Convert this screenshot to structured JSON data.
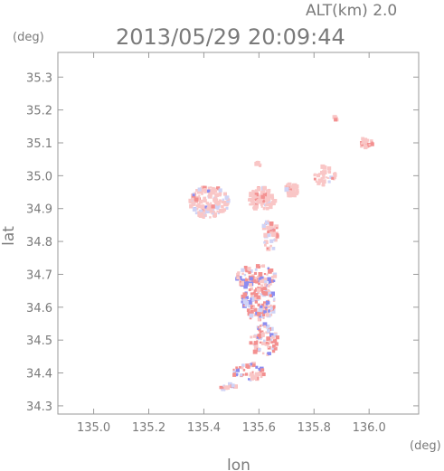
{
  "chart_data": {
    "type": "scatter",
    "title": "2013/05/29 20:09:44",
    "subtitle": "ALT(km) 2.0",
    "xlabel": "lon",
    "ylabel": "lat",
    "x_unit": "(deg)",
    "y_unit": "(deg)",
    "xlim": [
      134.87,
      136.18
    ],
    "ylim": [
      34.275,
      35.375
    ],
    "x_ticks": [
      "135.0",
      "135.2",
      "135.4",
      "135.6",
      "135.8",
      "136.0"
    ],
    "y_ticks": [
      "34.3",
      "34.4",
      "34.5",
      "34.6",
      "34.7",
      "34.8",
      "34.9",
      "35.0",
      "35.1",
      "35.2",
      "35.3"
    ],
    "grid": false,
    "colors": {
      "positive": "#f39090",
      "positive_light": "#f9c6c6",
      "negative": "#8c8cf0",
      "negative_light": "#cfd3f6"
    },
    "clusters": [
      {
        "name": "northwest-blob",
        "lon": 135.42,
        "lat": 34.92,
        "rx": 0.07,
        "ry": 0.05,
        "count": 160,
        "neg": 0.2,
        "light": 0.9
      },
      {
        "name": "central-north-blob",
        "lon": 135.61,
        "lat": 34.93,
        "rx": 0.05,
        "ry": 0.035,
        "count": 110,
        "neg": 0.03,
        "light": 0.85
      },
      {
        "name": "east-blob",
        "lon": 135.72,
        "lat": 34.955,
        "rx": 0.025,
        "ry": 0.02,
        "count": 45,
        "neg": 0.03,
        "light": 0.85
      },
      {
        "name": "northeast-blob",
        "lon": 135.84,
        "lat": 35.0,
        "rx": 0.04,
        "ry": 0.03,
        "count": 40,
        "neg": 0.03,
        "light": 0.9
      },
      {
        "name": "far-northeast-blob",
        "lon": 135.99,
        "lat": 35.1,
        "rx": 0.03,
        "ry": 0.015,
        "count": 25,
        "neg": 0.03,
        "light": 0.85
      },
      {
        "name": "small-north-blob",
        "lon": 135.6,
        "lat": 35.04,
        "rx": 0.01,
        "ry": 0.01,
        "count": 8,
        "neg": 0,
        "light": 0.8
      },
      {
        "name": "top-blob",
        "lon": 135.88,
        "lat": 35.175,
        "rx": 0.008,
        "ry": 0.006,
        "count": 6,
        "neg": 0,
        "light": 0.8
      },
      {
        "name": "mid-lower-east",
        "lon": 135.64,
        "lat": 34.82,
        "rx": 0.03,
        "ry": 0.05,
        "count": 40,
        "neg": 0.3,
        "light": 0.6
      },
      {
        "name": "upper-band",
        "lon": 135.59,
        "lat": 34.69,
        "rx": 0.07,
        "ry": 0.04,
        "count": 90,
        "neg": 0.3,
        "light": 0.5
      },
      {
        "name": "middle-band",
        "lon": 135.6,
        "lat": 34.61,
        "rx": 0.065,
        "ry": 0.05,
        "count": 120,
        "neg": 0.35,
        "light": 0.5
      },
      {
        "name": "lower-band",
        "lon": 135.62,
        "lat": 34.5,
        "rx": 0.05,
        "ry": 0.05,
        "count": 70,
        "neg": 0.3,
        "light": 0.5
      },
      {
        "name": "bottom-band",
        "lon": 135.56,
        "lat": 34.4,
        "rx": 0.06,
        "ry": 0.03,
        "count": 45,
        "neg": 0.25,
        "light": 0.5
      },
      {
        "name": "south-tail",
        "lon": 135.49,
        "lat": 34.355,
        "rx": 0.03,
        "ry": 0.012,
        "count": 15,
        "neg": 0.3,
        "light": 0.5
      }
    ]
  }
}
